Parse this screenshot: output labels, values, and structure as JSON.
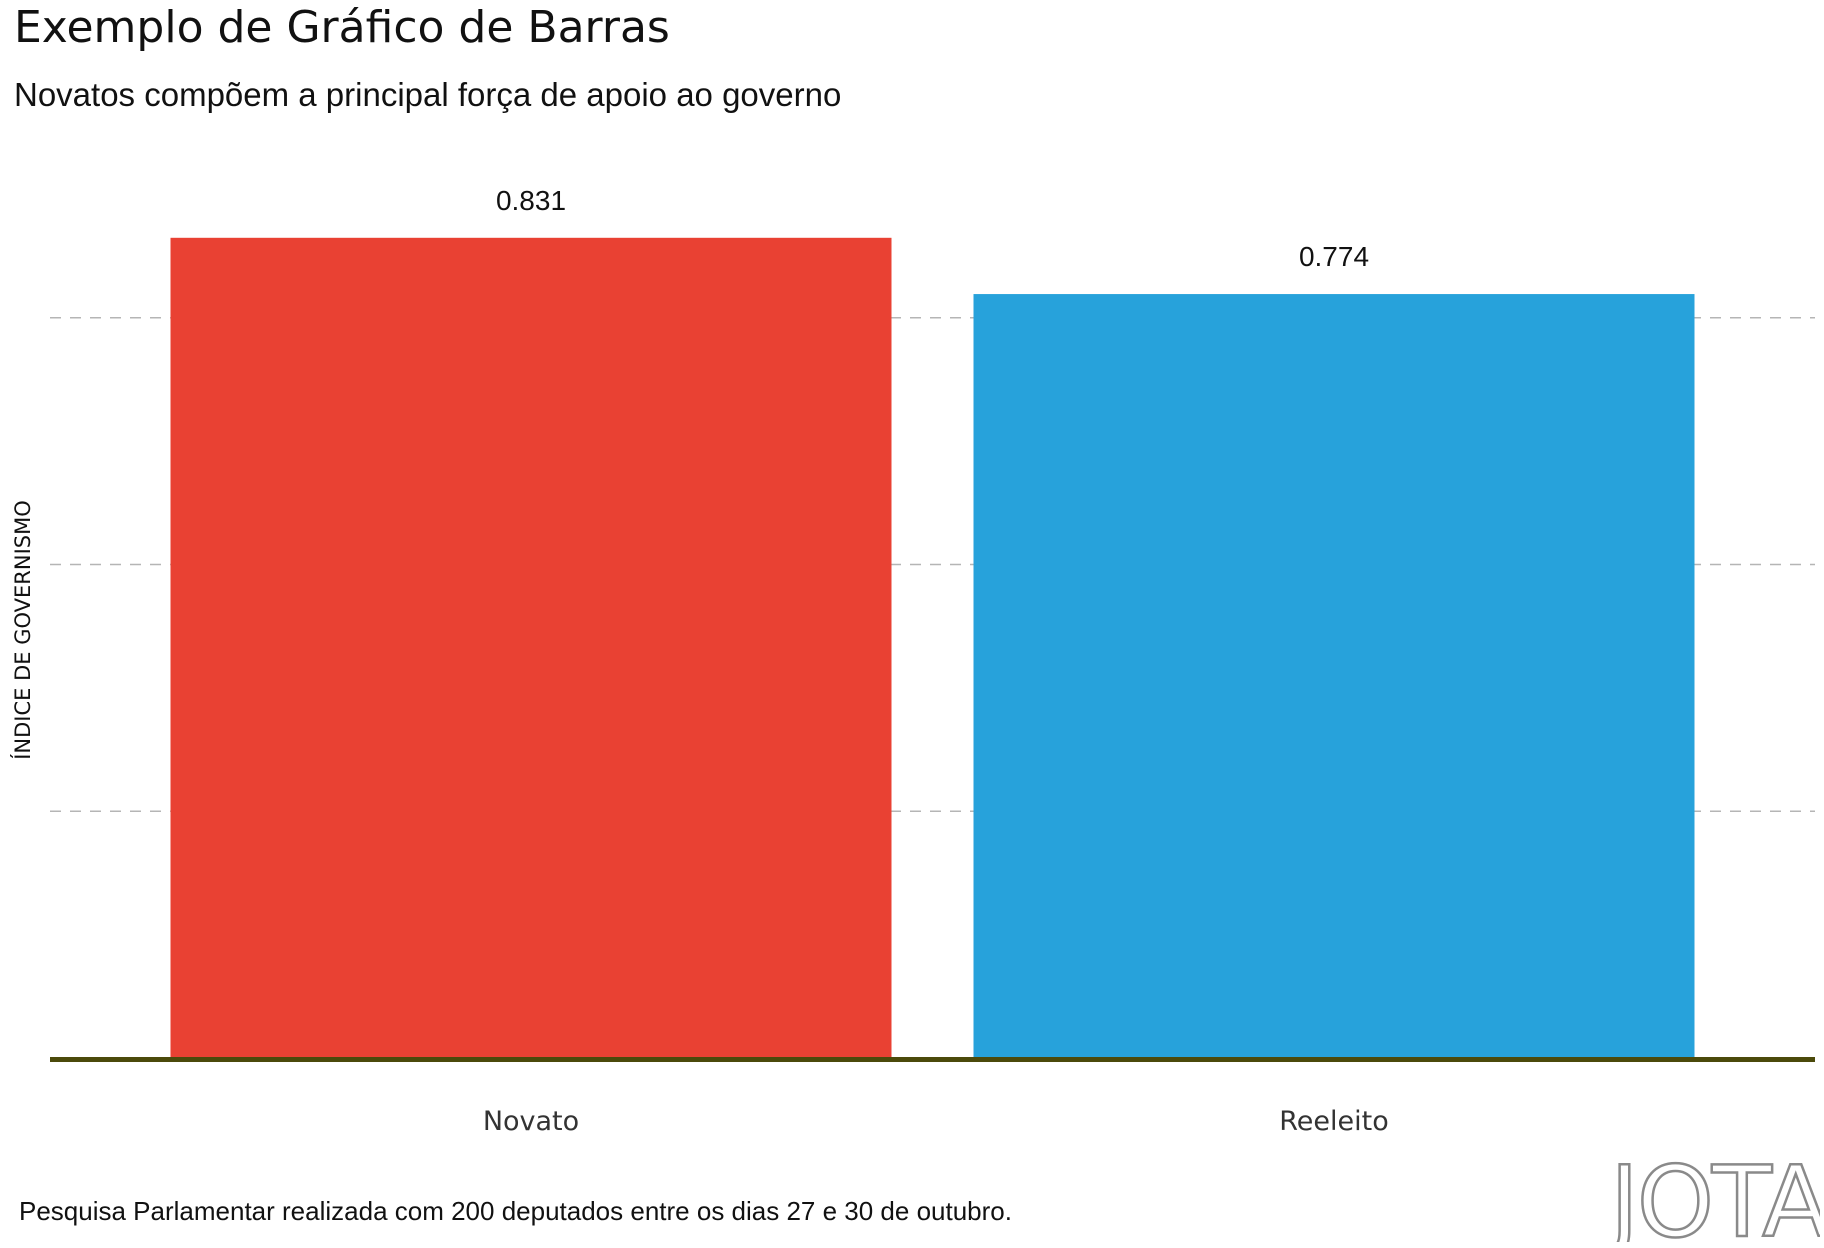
{
  "header": {
    "title": "Exemplo de Gráfico de Barras",
    "subtitle": "Novatos compõem a principal força de apoio ao governo"
  },
  "footer": {
    "caption": "Pesquisa Parlamentar realizada com 200 deputados entre os dias 27 e 30 de outubro.",
    "logo_text": "JOTA"
  },
  "colors": {
    "novato": "#E94133",
    "reeleito": "#27A2DB",
    "baseline": "#4B4A0B",
    "grid": "#B5B5B5"
  },
  "chart_data": {
    "type": "bar",
    "title": "Exemplo de Gráfico de Barras",
    "subtitle": "Novatos compõem a principal força de apoio ao governo",
    "xlabel": "",
    "ylabel": "ÍNDICE DE GOVERNISMO",
    "categories": [
      "Novato",
      "Reeleito"
    ],
    "values": [
      0.831,
      0.774
    ],
    "value_labels": [
      "0.831",
      "0.774"
    ],
    "ylim": [
      0,
      0.8
    ],
    "gridlines": [
      0.25,
      0.5,
      0.75
    ],
    "grid": true,
    "legend": "none"
  }
}
